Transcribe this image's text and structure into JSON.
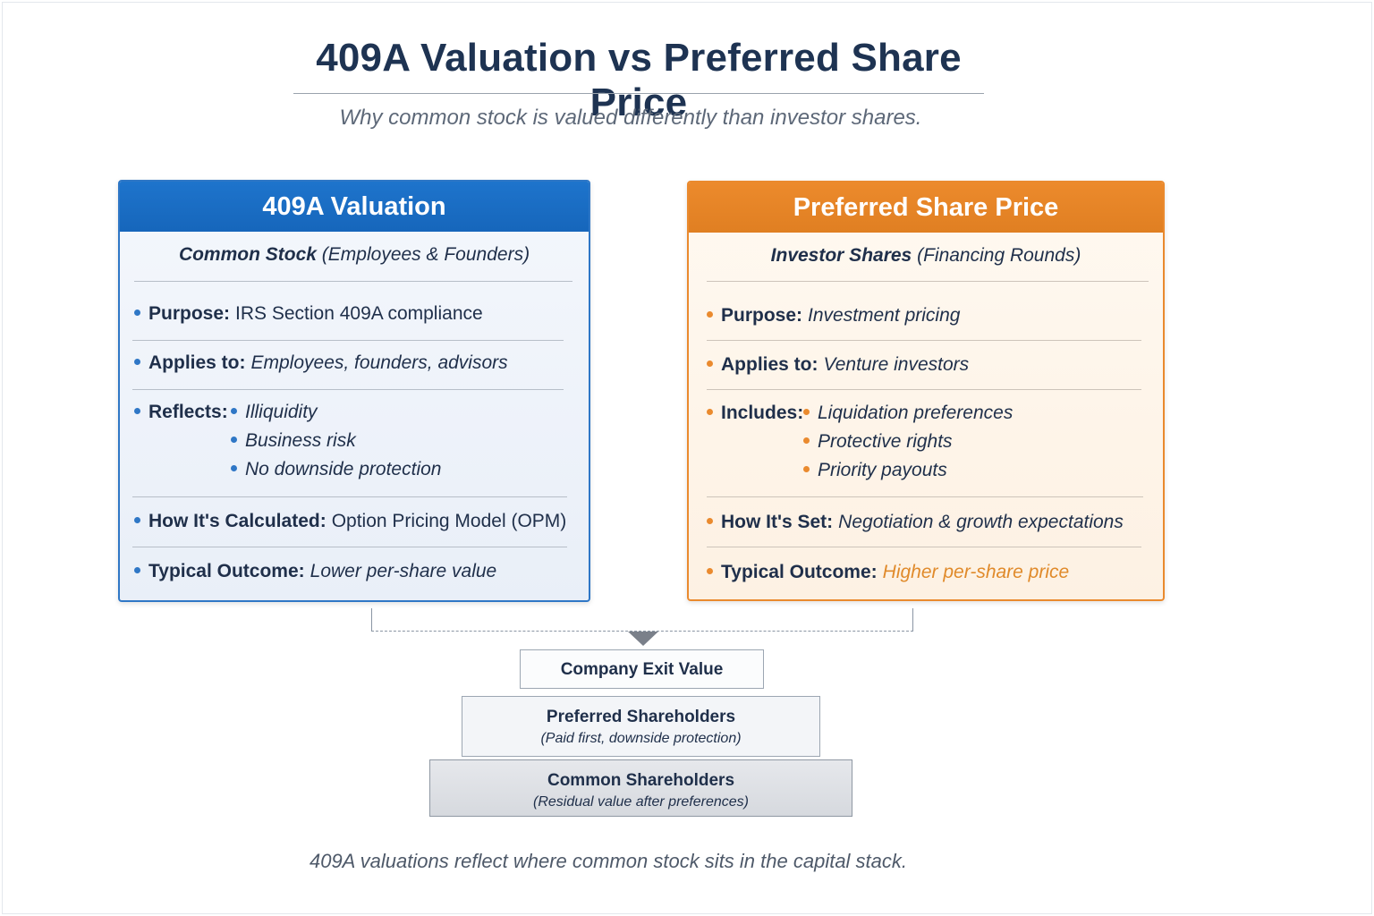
{
  "title": "409A Valuation vs Preferred Share Price",
  "subtitle": "Why common stock is valued differently than investor shares.",
  "left_card": {
    "header": "409A Valuation",
    "sub_bold": "Common Stock",
    "sub_rest": "(Employees & Founders)",
    "purpose_label": "Purpose:",
    "purpose_value": "IRS Section 409A compliance",
    "applies_label": "Applies to:",
    "applies_value": "Employees, founders, advisors",
    "reflects_label": "Reflects:",
    "reflects_items": [
      "Illiquidity",
      "Business risk",
      "No downside protection"
    ],
    "calc_label": "How It's Calculated:",
    "calc_value": "Option Pricing Model (OPM)",
    "outcome_label": "Typical Outcome:",
    "outcome_value": "Lower per-share value",
    "accent_color": "#1666bb"
  },
  "right_card": {
    "header": "Preferred Share Price",
    "sub_bold": "Investor Shares",
    "sub_rest": "(Financing Rounds)",
    "purpose_label": "Purpose:",
    "purpose_value": "Investment pricing",
    "applies_label": "Applies to:",
    "applies_value": "Venture investors",
    "includes_label": "Includes:",
    "includes_items": [
      "Liquidation preferences",
      "Protective rights",
      "Priority payouts"
    ],
    "set_label": "How It's Set:",
    "set_value": "Negotiation & growth expectations",
    "outcome_label": "Typical Outcome:",
    "outcome_value": "Higher per-share price",
    "accent_color": "#e07f22"
  },
  "capital_stack": {
    "exit": "Company Exit Value",
    "preferred_title": "Preferred Shareholders",
    "preferred_note": "(Paid first, downside protection)",
    "common_title": "Common Shareholders",
    "common_note": "(Residual value after preferences)"
  },
  "footer": "409A valuations reflect where common stock sits in the capital stack."
}
